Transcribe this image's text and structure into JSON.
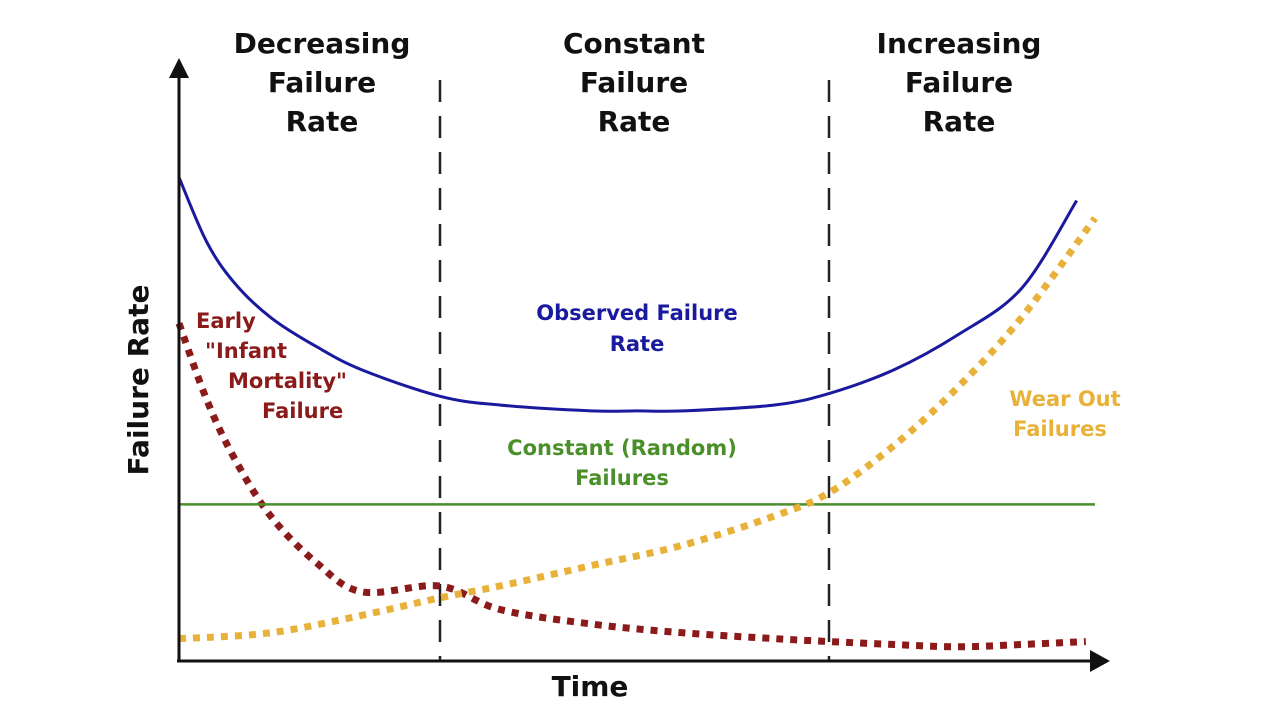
{
  "chart_data": {
    "type": "line",
    "title": "",
    "xlabel": "Time",
    "ylabel": "Failure Rate",
    "xlim": [
      0,
      100
    ],
    "ylim": [
      0,
      100
    ],
    "grid": false,
    "regions": [
      {
        "title_lines": [
          "Decreasing",
          "Failure",
          "Rate"
        ],
        "x_start": 0,
        "x_end": 28.5
      },
      {
        "title_lines": [
          "Constant",
          "Failure",
          "Rate"
        ],
        "x_start": 28.5,
        "x_end": 71
      },
      {
        "title_lines": [
          "Increasing",
          "Failure",
          "Rate"
        ],
        "x_start": 71,
        "x_end": 100
      }
    ],
    "dividers_x": [
      28.5,
      71
    ],
    "series": [
      {
        "name": "Observed Failure Rate",
        "label_lines": [
          "Observed Failure",
          "Rate"
        ],
        "color": "#1a1a9e",
        "style": "solid",
        "x": [
          0,
          3,
          6,
          10,
          15,
          20,
          28.5,
          35,
          45,
          50,
          55,
          65,
          71,
          78,
          85,
          92,
          98
        ],
        "y": [
          83,
          72,
          65,
          59,
          54,
          50,
          45.5,
          44,
          43,
          43,
          43,
          44,
          46,
          50,
          56,
          64,
          79
        ]
      },
      {
        "name": "Early \"Infant Mortality\" Failure",
        "label_lines": [
          "Early",
          "\"Infant",
          "Mortality\"",
          "Failure"
        ],
        "color": "#8b1a1a",
        "style": "dotted",
        "x": [
          0,
          3,
          6,
          10,
          15,
          20,
          28.5,
          35,
          45,
          55,
          65,
          71,
          78,
          85,
          92,
          99
        ],
        "y": [
          58,
          45,
          35,
          25,
          17,
          12,
          13,
          9,
          6.5,
          5,
          4,
          3.5,
          3,
          2.6,
          3,
          3.5
        ]
      },
      {
        "name": "Constant (Random) Failures",
        "label_lines": [
          "Constant (Random)",
          "Failures"
        ],
        "color": "#4a8f2a",
        "style": "solid",
        "x": [
          0,
          100
        ],
        "y": [
          27,
          27
        ]
      },
      {
        "name": "Wear Out Failures",
        "label_lines": [
          "Wear Out",
          "Failures"
        ],
        "color": "#e8b23a",
        "style": "dotted",
        "x": [
          0,
          10,
          20,
          28.5,
          35,
          45,
          55,
          65,
          71,
          78,
          85,
          92,
          100
        ],
        "y": [
          4,
          5,
          8,
          11,
          13,
          16.5,
          20,
          25,
          29,
          37,
          47,
          59,
          76
        ]
      }
    ]
  }
}
